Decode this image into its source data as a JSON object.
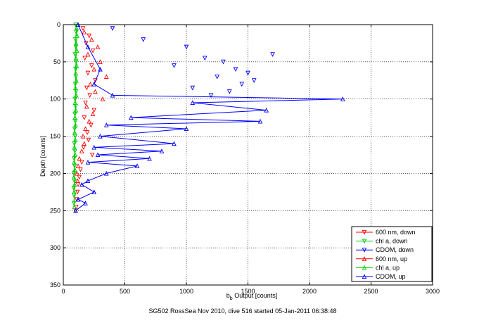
{
  "chart_data": {
    "type": "scatter",
    "xlabel_main": "b",
    "xlabel_sub": "b",
    "xlabel_rest": " Output [counts]",
    "ylabel": "Depth [counts]",
    "caption": "SG502 RossSea Nov 2010, dive 516 started 05-Jan-2011 06:38:48",
    "xlim": [
      0,
      3000
    ],
    "ylim": [
      0,
      350
    ],
    "y_reversed": true,
    "grid": true,
    "xticks": [
      "0",
      "500",
      "1000",
      "1500",
      "2000",
      "2500",
      "3000"
    ],
    "yticks": [
      "0",
      "50",
      "100",
      "150",
      "200",
      "250",
      "300",
      "350"
    ],
    "legend_position": "bottom-right",
    "legend": [
      {
        "label": "600 nm, down",
        "color": "#ff0000",
        "marker": "tri-down"
      },
      {
        "label": "chl a, down",
        "color": "#00cc00",
        "marker": "tri-down"
      },
      {
        "label": "CDOM, down",
        "color": "#0000ff",
        "marker": "tri-down"
      },
      {
        "label": "600 nm, up",
        "color": "#ff0000",
        "marker": "tri-up"
      },
      {
        "label": "chl a, up",
        "color": "#00cc00",
        "marker": "tri-up"
      },
      {
        "label": "CDOM, up",
        "color": "#0000ff",
        "marker": "tri-up"
      }
    ],
    "series": [
      {
        "name": "600 nm, down",
        "color": "#ff0000",
        "marker": "tri-down",
        "connected": false,
        "x": [
          160,
          210,
          185,
          240,
          175,
          230,
          200,
          260,
          190,
          215,
          180,
          250,
          170,
          225,
          195,
          205,
          165,
          235,
          150,
          140,
          130,
          120,
          115,
          110,
          105,
          100
        ],
        "y": [
          5,
          15,
          25,
          35,
          45,
          55,
          65,
          75,
          85,
          95,
          105,
          115,
          125,
          135,
          145,
          155,
          165,
          175,
          185,
          195,
          205,
          215,
          225,
          235,
          245,
          250
        ]
      },
      {
        "name": "chl a, down",
        "color": "#00cc00",
        "marker": "tri-down",
        "connected": true,
        "x": [
          100,
          105,
          98,
          102,
          96,
          104,
          99,
          101,
          97,
          103,
          95,
          100,
          94,
          98,
          92,
          96,
          90,
          94,
          88,
          92,
          86,
          90,
          85,
          88,
          86
        ],
        "y": [
          0,
          10,
          20,
          30,
          40,
          50,
          60,
          70,
          80,
          90,
          100,
          110,
          120,
          130,
          140,
          150,
          160,
          170,
          180,
          190,
          200,
          210,
          220,
          230,
          240
        ]
      },
      {
        "name": "CDOM, down",
        "color": "#0000ff",
        "marker": "tri-down",
        "connected": false,
        "x": [
          400,
          650,
          1000,
          1150,
          1300,
          1400,
          900,
          1250,
          1550,
          1050,
          1450,
          1350,
          1200,
          1500,
          1700
        ],
        "y": [
          5,
          20,
          30,
          45,
          50,
          60,
          55,
          70,
          75,
          85,
          80,
          90,
          95,
          65,
          40
        ]
      },
      {
        "name": "600 nm, up",
        "color": "#ff0000",
        "marker": "tri-up",
        "connected": false,
        "x": [
          170,
          230,
          280,
          200,
          300,
          250,
          350,
          220,
          260,
          320,
          190,
          240,
          210,
          180,
          160,
          170,
          150,
          130,
          120,
          110,
          115
        ],
        "y": [
          10,
          20,
          30,
          40,
          50,
          60,
          70,
          80,
          90,
          100,
          110,
          120,
          130,
          140,
          150,
          160,
          170,
          180,
          190,
          200,
          210
        ]
      },
      {
        "name": "chl a, up",
        "color": "#00cc00",
        "marker": "tri-up",
        "connected": true,
        "x": [
          108,
          112,
          104,
          110,
          102,
          108,
          100,
          106,
          98,
          104,
          96,
          102,
          94,
          100,
          92,
          98,
          90,
          96,
          88,
          94,
          86,
          92,
          88,
          90
        ],
        "y": [
          5,
          15,
          25,
          35,
          45,
          55,
          65,
          75,
          85,
          95,
          105,
          115,
          125,
          135,
          145,
          155,
          165,
          175,
          185,
          195,
          205,
          215,
          225,
          245
        ]
      },
      {
        "name": "CDOM, up",
        "color": "#0000ff",
        "marker": "tri-up",
        "connected": true,
        "x": [
          120,
          200,
          300,
          250,
          400,
          2270,
          1050,
          1650,
          550,
          1600,
          350,
          1000,
          300,
          900,
          250,
          800,
          280,
          700,
          200,
          600,
          350,
          200,
          150,
          250,
          120,
          180,
          100
        ],
        "y": [
          0,
          30,
          60,
          80,
          95,
          100,
          105,
          115,
          125,
          130,
          135,
          140,
          150,
          160,
          165,
          170,
          175,
          180,
          185,
          190,
          200,
          210,
          215,
          225,
          235,
          240,
          250
        ]
      }
    ]
  }
}
